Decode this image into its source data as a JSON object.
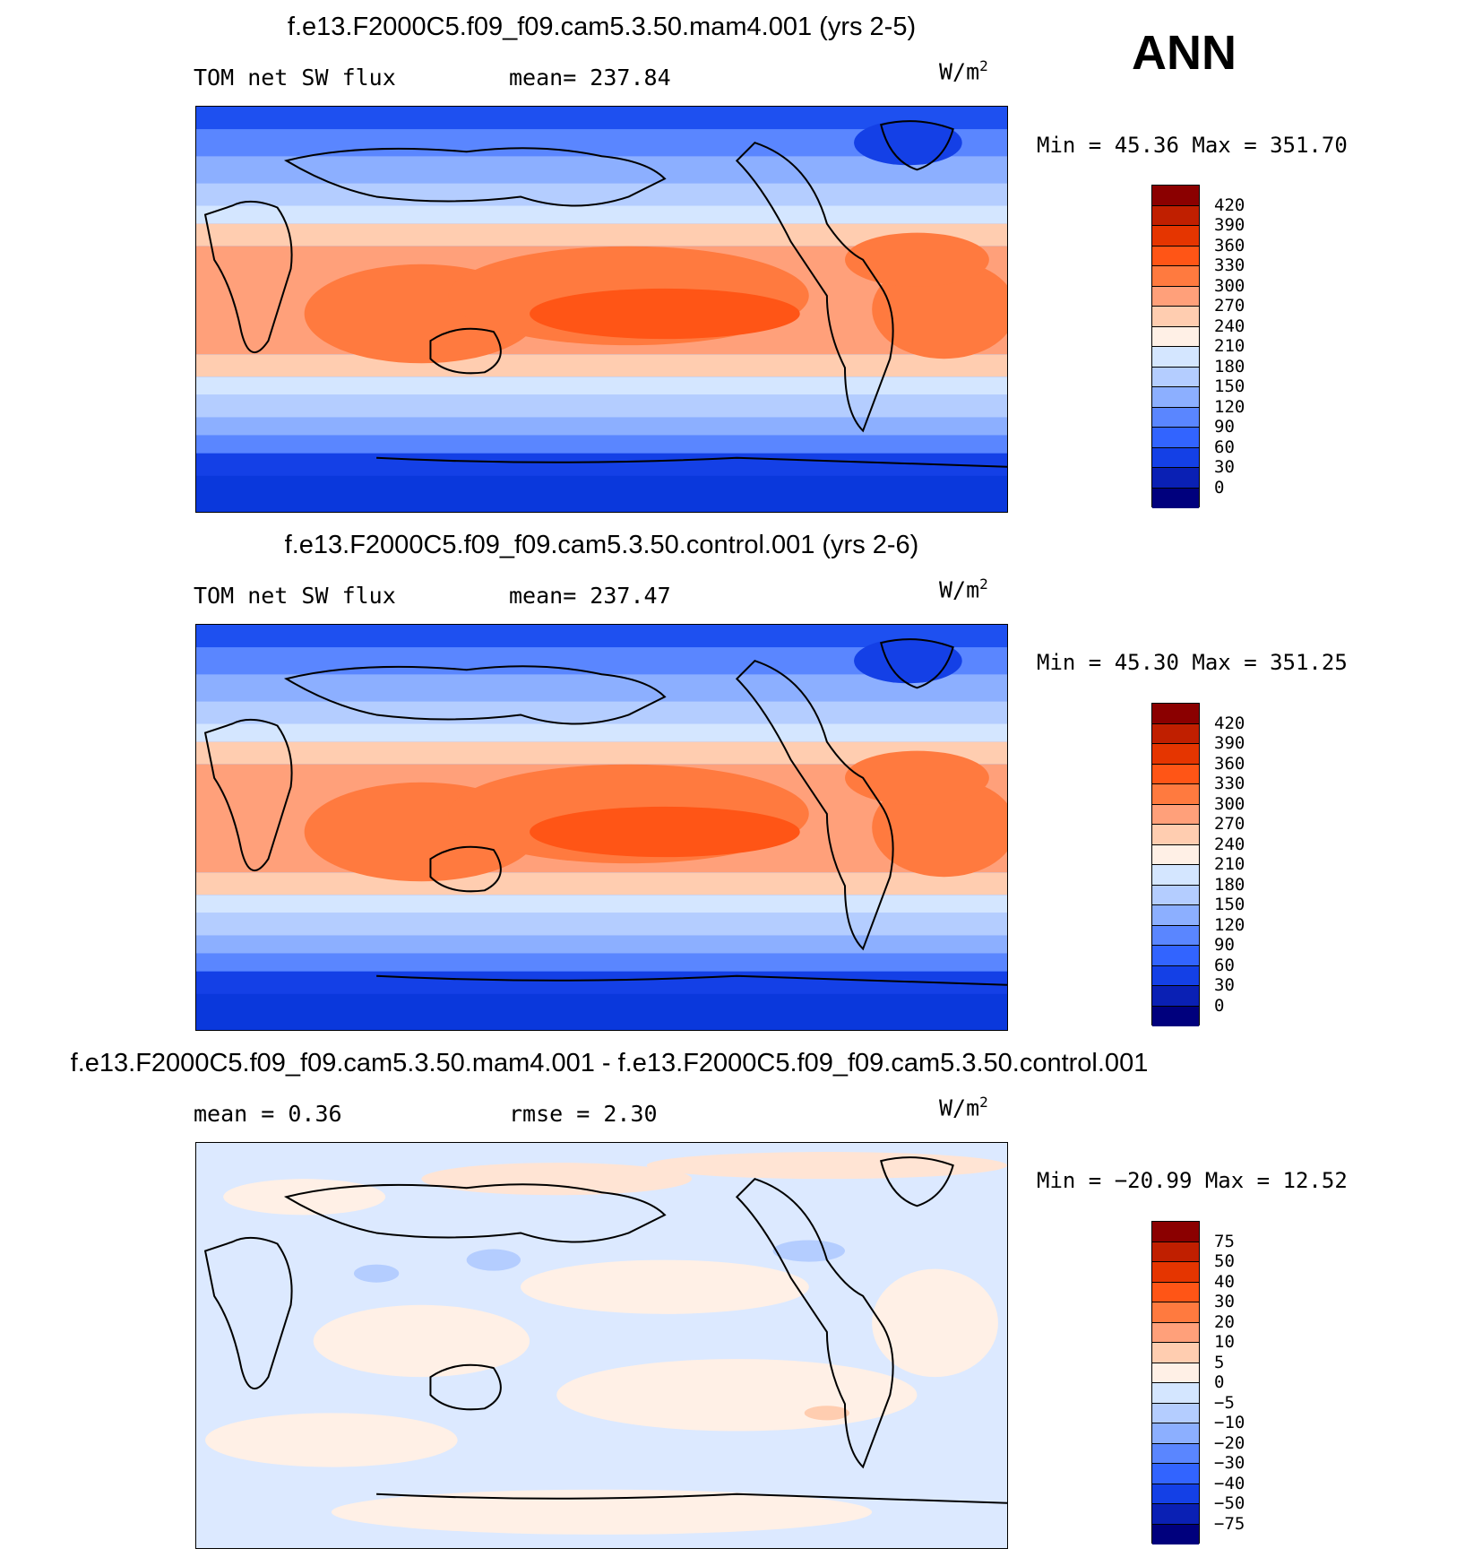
{
  "season": "ANN",
  "panels": [
    {
      "title": "f.e13.F2000C5.f09_f09.cam5.3.50.mam4.001 (yrs 2-5)",
      "left_label": "TOM net SW flux",
      "center_label": "mean= 237.84",
      "units": "W/m",
      "units_exp": "2",
      "minmax": "Min =   45.36 Max = 351.70",
      "colorbar_labels": [
        "420",
        "390",
        "360",
        "330",
        "300",
        "270",
        "240",
        "210",
        "180",
        "150",
        "120",
        "90",
        "60",
        "30",
        "0"
      ],
      "colorbar_colors": [
        "#8b0000",
        "#c01f00",
        "#e53500",
        "#ff5516",
        "#ff7a3f",
        "#ffa07a",
        "#ffcdb0",
        "#fff0e6",
        "#d4e6ff",
        "#b4cdff",
        "#8cafff",
        "#5a86ff",
        "#3264ff",
        "#1440e6",
        "#0a20b4",
        "#00007d"
      ]
    },
    {
      "title": "f.e13.F2000C5.f09_f09.cam5.3.50.control.001 (yrs 2-6)",
      "left_label": "TOM net SW flux",
      "center_label": "mean= 237.47",
      "units": "W/m",
      "units_exp": "2",
      "minmax": "Min =   45.30 Max = 351.25",
      "colorbar_labels": [
        "420",
        "390",
        "360",
        "330",
        "300",
        "270",
        "240",
        "210",
        "180",
        "150",
        "120",
        "90",
        "60",
        "30",
        "0"
      ],
      "colorbar_colors": [
        "#8b0000",
        "#c01f00",
        "#e53500",
        "#ff5516",
        "#ff7a3f",
        "#ffa07a",
        "#ffcdb0",
        "#fff0e6",
        "#d4e6ff",
        "#b4cdff",
        "#8cafff",
        "#5a86ff",
        "#3264ff",
        "#1440e6",
        "#0a20b4",
        "#00007d"
      ]
    },
    {
      "title": "f.e13.F2000C5.f09_f09.cam5.3.50.mam4.001 - f.e13.F2000C5.f09_f09.cam5.3.50.control.001",
      "left_label": "mean =    0.36",
      "center_label": "rmse =    2.30",
      "units": "W/m",
      "units_exp": "2",
      "minmax": "Min = −20.99 Max =   12.52",
      "colorbar_labels": [
        "75",
        "50",
        "40",
        "30",
        "20",
        "10",
        "5",
        "0",
        "−5",
        "−10",
        "−20",
        "−30",
        "−40",
        "−50",
        "−75"
      ],
      "colorbar_colors": [
        "#8b0000",
        "#c01f00",
        "#e53500",
        "#ff5516",
        "#ff7a3f",
        "#ffa07a",
        "#ffcdb0",
        "#fff0e6",
        "#d4e6ff",
        "#b4cdff",
        "#8cafff",
        "#5a86ff",
        "#3264ff",
        "#1440e6",
        "#0a20b4",
        "#00007d"
      ]
    }
  ]
}
